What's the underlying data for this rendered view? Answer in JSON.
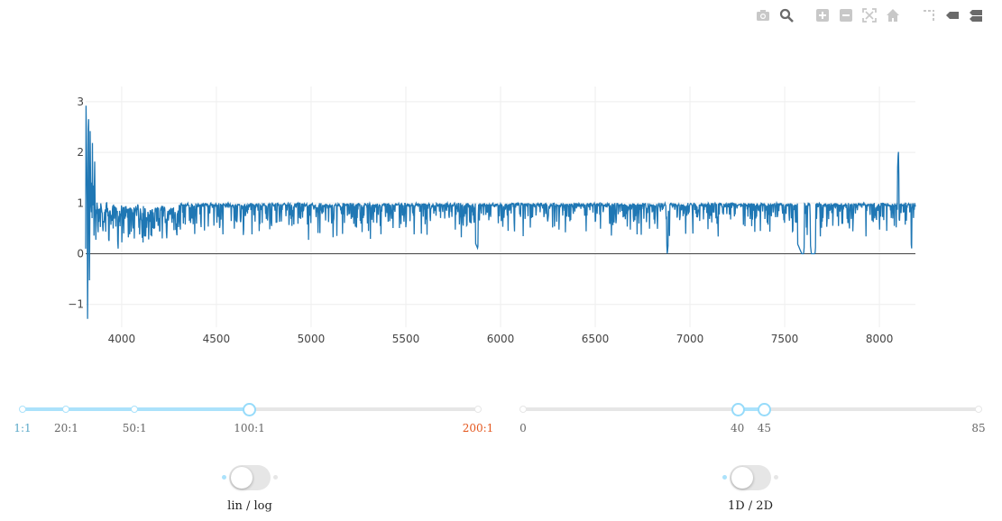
{
  "modebar": [
    {
      "name": "camera-icon",
      "icon": "camera"
    },
    {
      "name": "zoom-icon",
      "icon": "zoom"
    },
    {
      "name": "zoom-in-icon",
      "icon": "plus"
    },
    {
      "name": "zoom-out-icon",
      "icon": "minus"
    },
    {
      "name": "autoscale-icon",
      "icon": "autoscale"
    },
    {
      "name": "home-icon",
      "icon": "home"
    },
    {
      "name": "spike-lines-icon",
      "icon": "spike"
    },
    {
      "name": "hover-closest-icon",
      "icon": "tag"
    },
    {
      "name": "hover-compare-icon",
      "icon": "tags"
    }
  ],
  "chart_data": {
    "type": "line",
    "xlim": [
      3810,
      8190
    ],
    "ylim": [
      -1.45,
      3.3
    ],
    "x_ticks": [
      4000,
      4500,
      5000,
      5500,
      6000,
      6500,
      7000,
      7500,
      8000
    ],
    "x_tick_labels": [
      "4000",
      "4500",
      "5000",
      "5500",
      "6000",
      "6500",
      "7000",
      "7500",
      "8000"
    ],
    "y_ticks": [
      -1,
      0,
      1,
      2,
      3
    ],
    "y_tick_labels": [
      "−1",
      "0",
      "1",
      "2",
      "3"
    ],
    "line_color": "#1f77b4",
    "grid": true,
    "zeroline": true,
    "series": [
      {
        "x": [
          3810,
          3815,
          3820,
          3825,
          3830,
          3835,
          3840,
          3845,
          3850,
          3855,
          3860,
          3870,
          3880,
          3890,
          3900,
          3920,
          3940,
          3960,
          3980,
          4000,
          4050,
          4100,
          4150,
          4200,
          4250,
          4300,
          4350,
          4400,
          4500,
          4600,
          4700,
          4800,
          4850,
          4870,
          4900,
          5000,
          5200,
          5400,
          5600,
          5800,
          5880,
          5890,
          6000,
          6200,
          6400,
          6600,
          6800,
          6870,
          6880,
          6890,
          6900,
          7000,
          7150,
          7200,
          7300,
          7500,
          7590,
          7600,
          7620,
          7640,
          7660,
          7680,
          7700,
          7800,
          8000,
          8090,
          8100,
          8105,
          8110,
          8120,
          8150,
          8170,
          8180,
          8190
        ],
        "y": [
          1.2,
          3.2,
          -1.4,
          2.8,
          -1.0,
          2.5,
          0.3,
          2.1,
          0.2,
          1.5,
          0.4,
          1.3,
          0.3,
          1.4,
          0.4,
          1.2,
          0.2,
          1.1,
          0.3,
          1.1,
          0.5,
          1.1,
          0.3,
          1.0,
          0.4,
          0.9,
          0.3,
          1.0,
          0.5,
          0.9,
          0.3,
          1.0,
          0.4,
          0.2,
          1.0,
          0.6,
          0.9,
          0.5,
          1.0,
          0.8,
          0.1,
          1.0,
          0.9,
          0.8,
          1.0,
          0.7,
          1.0,
          0.8,
          0.0,
          0.4,
          1.0,
          0.9,
          0.8,
          0.3,
          1.0,
          0.8,
          0.0,
          0.0,
          0.9,
          0.0,
          0.0,
          1.0,
          0.8,
          1.0,
          0.9,
          1.0,
          2.1,
          1.0,
          1.0,
          0.9,
          1.0,
          0.1,
          0.6,
          1.0
        ]
      }
    ]
  },
  "sliders": {
    "ratio": {
      "marks": [
        "1:1",
        "20:1",
        "50:1",
        "100:1",
        "200:1"
      ],
      "selected": "100:1"
    },
    "range": {
      "marks": [
        "0",
        "40",
        "45",
        "85"
      ],
      "min": 0,
      "max": 85,
      "value": [
        40,
        45
      ]
    }
  },
  "toggles": {
    "scale": {
      "label": "lin / log",
      "on": false
    },
    "dimension": {
      "label": "1D / 2D",
      "on": false
    }
  }
}
